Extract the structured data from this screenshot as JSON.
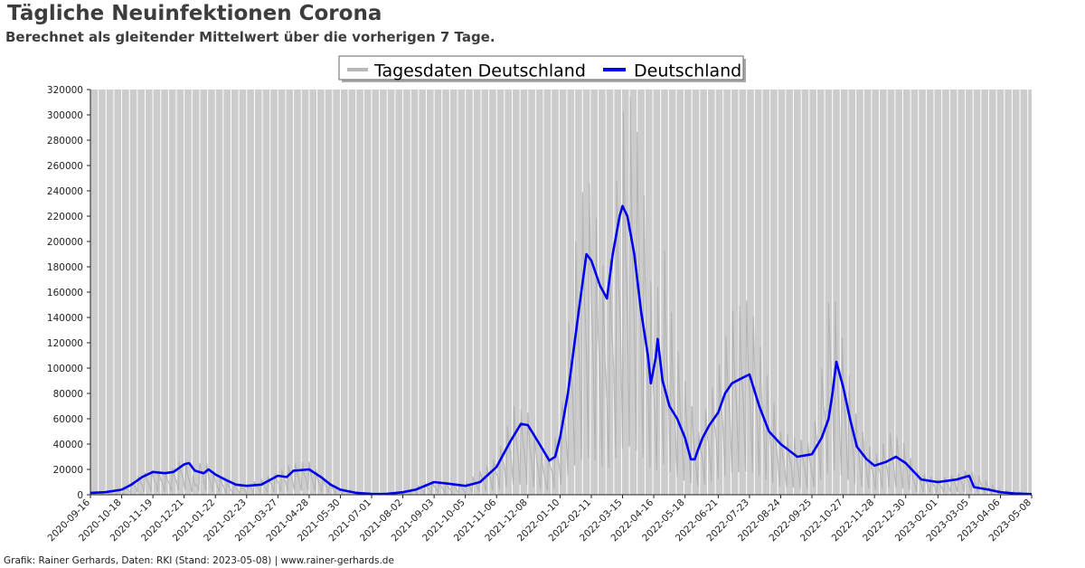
{
  "header": {
    "title": "Tägliche Neuinfektionen Corona",
    "subtitle": "Berechnet als gleitender Mittelwert über die vorherigen 7 Tage."
  },
  "footer": {
    "credit": "Grafik: Rainer Gerhards, Daten: RKI (Stand: 2023-05-08) | www.rainer-gerhards.de"
  },
  "chart_data": {
    "type": "line",
    "title": "Tägliche Neuinfektionen Corona",
    "subtitle": "Berechnet als gleitender Mittelwert über die vorherigen 7 Tage.",
    "xlabel": "",
    "ylabel": "",
    "xlim": [
      "2020-09-16",
      "2023-05-08"
    ],
    "ylim": [
      0,
      320000
    ],
    "y_ticks": [
      0,
      20000,
      40000,
      60000,
      80000,
      100000,
      120000,
      140000,
      160000,
      180000,
      200000,
      220000,
      240000,
      260000,
      280000,
      300000,
      320000
    ],
    "x_ticks": [
      "2020-09-16",
      "2020-10-18",
      "2020-11-19",
      "2020-12-21",
      "2021-01-22",
      "2021-02-23",
      "2021-03-27",
      "2021-04-28",
      "2021-05-30",
      "2021-07-01",
      "2021-08-02",
      "2021-09-03",
      "2021-10-05",
      "2021-11-06",
      "2021-12-08",
      "2022-01-10",
      "2022-02-11",
      "2022-03-15",
      "2022-04-16",
      "2022-05-18",
      "2022-06-21",
      "2022-07-23",
      "2022-08-24",
      "2022-09-25",
      "2022-10-27",
      "2022-11-28",
      "2022-12-30",
      "2023-02-01",
      "2023-03-05",
      "2023-04-06",
      "2023-05-08"
    ],
    "grid": true,
    "legend_position": "top-center",
    "colors": {
      "plot_background": "#cccccc",
      "grid": "#ffffff",
      "daily": "#b0b0b0",
      "average": "#0000ee"
    },
    "series": [
      {
        "name": "Tagesdaten Deutschland",
        "style": "daily",
        "points": [
          [
            "2020-09-16",
            1500
          ],
          [
            "2020-10-18",
            3000
          ],
          [
            "2020-11-03",
            15000
          ],
          [
            "2020-11-19",
            20000
          ],
          [
            "2020-12-05",
            18000
          ],
          [
            "2020-12-21",
            30000
          ],
          [
            "2021-01-01",
            12000
          ],
          [
            "2021-01-08",
            30000
          ],
          [
            "2021-01-22",
            17000
          ],
          [
            "2021-02-08",
            8000
          ],
          [
            "2021-02-23",
            8000
          ],
          [
            "2021-03-27",
            18000
          ],
          [
            "2021-04-10",
            25000
          ],
          [
            "2021-04-28",
            26000
          ],
          [
            "2021-05-10",
            16000
          ],
          [
            "2021-05-30",
            5000
          ],
          [
            "2021-07-01",
            900
          ],
          [
            "2021-08-02",
            2500
          ],
          [
            "2021-09-03",
            11000
          ],
          [
            "2021-10-05",
            9000
          ],
          [
            "2021-11-06",
            30000
          ],
          [
            "2021-11-24",
            70000
          ],
          [
            "2021-12-08",
            65000
          ],
          [
            "2021-12-26",
            25000
          ],
          [
            "2022-01-10",
            55000
          ],
          [
            "2022-01-26",
            200000
          ],
          [
            "2022-02-04",
            250000
          ],
          [
            "2022-02-11",
            245000
          ],
          [
            "2022-02-27",
            160000
          ],
          [
            "2022-03-15",
            300000
          ],
          [
            "2022-03-22",
            318000
          ],
          [
            "2022-04-02",
            275000
          ],
          [
            "2022-04-16",
            140000
          ],
          [
            "2022-04-26",
            200000
          ],
          [
            "2022-05-06",
            130000
          ],
          [
            "2022-05-18",
            90000
          ],
          [
            "2022-06-01",
            50000
          ],
          [
            "2022-06-21",
            100000
          ],
          [
            "2022-07-05",
            145000
          ],
          [
            "2022-07-23",
            155000
          ],
          [
            "2022-08-05",
            110000
          ],
          [
            "2022-08-24",
            50000
          ],
          [
            "2022-09-25",
            40000
          ],
          [
            "2022-10-10",
            130000
          ],
          [
            "2022-10-14",
            173000
          ],
          [
            "2022-10-27",
            120000
          ],
          [
            "2022-11-10",
            60000
          ],
          [
            "2022-11-28",
            30000
          ],
          [
            "2022-12-15",
            50000
          ],
          [
            "2022-12-30",
            40000
          ],
          [
            "2023-01-08",
            20000
          ],
          [
            "2023-02-01",
            12000
          ],
          [
            "2023-03-05",
            20000
          ],
          [
            "2023-04-06",
            4000
          ],
          [
            "2023-05-08",
            1000
          ]
        ]
      },
      {
        "name": "Deutschland",
        "style": "average",
        "points": [
          [
            "2020-09-16",
            1500
          ],
          [
            "2020-10-01",
            2000
          ],
          [
            "2020-10-18",
            4000
          ],
          [
            "2020-10-28",
            8000
          ],
          [
            "2020-11-08",
            14000
          ],
          [
            "2020-11-19",
            18000
          ],
          [
            "2020-12-01",
            17000
          ],
          [
            "2020-12-10",
            18000
          ],
          [
            "2020-12-21",
            24000
          ],
          [
            "2020-12-26",
            25000
          ],
          [
            "2021-01-01",
            19000
          ],
          [
            "2021-01-10",
            17000
          ],
          [
            "2021-01-15",
            20000
          ],
          [
            "2021-01-22",
            16000
          ],
          [
            "2021-02-01",
            12000
          ],
          [
            "2021-02-12",
            8000
          ],
          [
            "2021-02-23",
            7000
          ],
          [
            "2021-03-10",
            8000
          ],
          [
            "2021-03-27",
            15000
          ],
          [
            "2021-04-05",
            14000
          ],
          [
            "2021-04-12",
            19000
          ],
          [
            "2021-04-28",
            20000
          ],
          [
            "2021-05-10",
            14000
          ],
          [
            "2021-05-20",
            8000
          ],
          [
            "2021-05-30",
            4000
          ],
          [
            "2021-06-15",
            1500
          ],
          [
            "2021-07-01",
            700
          ],
          [
            "2021-07-15",
            600
          ],
          [
            "2021-08-02",
            2000
          ],
          [
            "2021-08-15",
            4000
          ],
          [
            "2021-09-03",
            10000
          ],
          [
            "2021-09-15",
            9000
          ],
          [
            "2021-10-05",
            7000
          ],
          [
            "2021-10-20",
            10000
          ],
          [
            "2021-11-06",
            22000
          ],
          [
            "2021-11-20",
            42000
          ],
          [
            "2021-12-01",
            56000
          ],
          [
            "2021-12-08",
            55000
          ],
          [
            "2021-12-20",
            40000
          ],
          [
            "2021-12-30",
            27000
          ],
          [
            "2022-01-05",
            30000
          ],
          [
            "2022-01-10",
            45000
          ],
          [
            "2022-01-18",
            80000
          ],
          [
            "2022-01-30",
            150000
          ],
          [
            "2022-02-06",
            190000
          ],
          [
            "2022-02-11",
            185000
          ],
          [
            "2022-02-20",
            165000
          ],
          [
            "2022-02-27",
            155000
          ],
          [
            "2022-03-05",
            190000
          ],
          [
            "2022-03-12",
            220000
          ],
          [
            "2022-03-15",
            228000
          ],
          [
            "2022-03-20",
            220000
          ],
          [
            "2022-03-27",
            190000
          ],
          [
            "2022-04-03",
            145000
          ],
          [
            "2022-04-10",
            110000
          ],
          [
            "2022-04-13",
            88000
          ],
          [
            "2022-04-18",
            108000
          ],
          [
            "2022-04-20",
            123000
          ],
          [
            "2022-04-25",
            90000
          ],
          [
            "2022-05-02",
            70000
          ],
          [
            "2022-05-10",
            60000
          ],
          [
            "2022-05-18",
            45000
          ],
          [
            "2022-05-24",
            28000
          ],
          [
            "2022-05-28",
            28000
          ],
          [
            "2022-05-31",
            35000
          ],
          [
            "2022-06-05",
            45000
          ],
          [
            "2022-06-12",
            55000
          ],
          [
            "2022-06-21",
            65000
          ],
          [
            "2022-06-28",
            80000
          ],
          [
            "2022-07-05",
            88000
          ],
          [
            "2022-07-15",
            92000
          ],
          [
            "2022-07-23",
            95000
          ],
          [
            "2022-08-02",
            70000
          ],
          [
            "2022-08-12",
            50000
          ],
          [
            "2022-08-24",
            40000
          ],
          [
            "2022-09-10",
            30000
          ],
          [
            "2022-09-25",
            32000
          ],
          [
            "2022-10-05",
            45000
          ],
          [
            "2022-10-12",
            60000
          ],
          [
            "2022-10-16",
            80000
          ],
          [
            "2022-10-20",
            105000
          ],
          [
            "2022-10-27",
            85000
          ],
          [
            "2022-11-03",
            60000
          ],
          [
            "2022-11-10",
            38000
          ],
          [
            "2022-11-20",
            28000
          ],
          [
            "2022-11-28",
            23000
          ],
          [
            "2022-12-10",
            26000
          ],
          [
            "2022-12-20",
            30000
          ],
          [
            "2022-12-30",
            25000
          ],
          [
            "2023-01-05",
            20000
          ],
          [
            "2023-01-15",
            12000
          ],
          [
            "2023-02-01",
            10000
          ],
          [
            "2023-02-20",
            12000
          ],
          [
            "2023-03-05",
            15000
          ],
          [
            "2023-03-10",
            6000
          ],
          [
            "2023-03-25",
            4000
          ],
          [
            "2023-04-06",
            2000
          ],
          [
            "2023-04-20",
            1000
          ],
          [
            "2023-05-08",
            500
          ]
        ]
      }
    ]
  }
}
